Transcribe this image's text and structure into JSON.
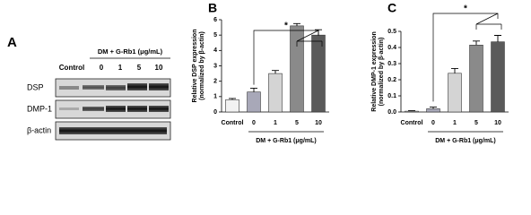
{
  "panel_a": {
    "label": "A",
    "header": "DM + G-Rb1 (μg/mL)",
    "columns": [
      "Control",
      "0",
      "1",
      "5",
      "10"
    ],
    "rows": [
      "DSP",
      "DMP-1",
      "β-actin"
    ]
  },
  "chart_data": [
    {
      "type": "bar",
      "panel": "B",
      "ylabel": [
        "Relative DSP expression",
        "(normalized by β-actin)"
      ],
      "xlabel": "DM + G-Rb1 (μg/mL)",
      "categories": [
        "Control",
        "0",
        "1",
        "5",
        "10"
      ],
      "values": [
        0.8,
        1.3,
        2.5,
        5.6,
        5.0
      ],
      "errors": [
        0.08,
        0.25,
        0.2,
        0.15,
        0.35
      ],
      "colors": [
        "#f2f2f2",
        "#a8a8b8",
        "#d4d4d4",
        "#8a8a8a",
        "#5a5a5a"
      ],
      "ylim": [
        0,
        6
      ],
      "yticks": [
        0,
        1,
        2,
        3,
        4,
        5,
        6
      ],
      "annotation": "*"
    },
    {
      "type": "bar",
      "panel": "C",
      "ylabel": [
        "Relative DMP-1 expression",
        "(normalized by β-actin)"
      ],
      "xlabel": "DM + G-Rb1 (μg/mL)",
      "categories": [
        "Control",
        "0",
        "1",
        "5",
        "10"
      ],
      "values": [
        0.005,
        0.02,
        0.24,
        0.415,
        0.435
      ],
      "errors": [
        0.003,
        0.01,
        0.03,
        0.025,
        0.04
      ],
      "colors": [
        "#f2f2f2",
        "#a8a8b8",
        "#d4d4d4",
        "#8a8a8a",
        "#5a5a5a"
      ],
      "ylim": [
        0,
        0.5
      ],
      "yticks": [
        {
          "value": 0,
          "label": "0.0"
        },
        0.1,
        0.2,
        0.3,
        0.4,
        0.5
      ],
      "annotation": "*"
    }
  ]
}
